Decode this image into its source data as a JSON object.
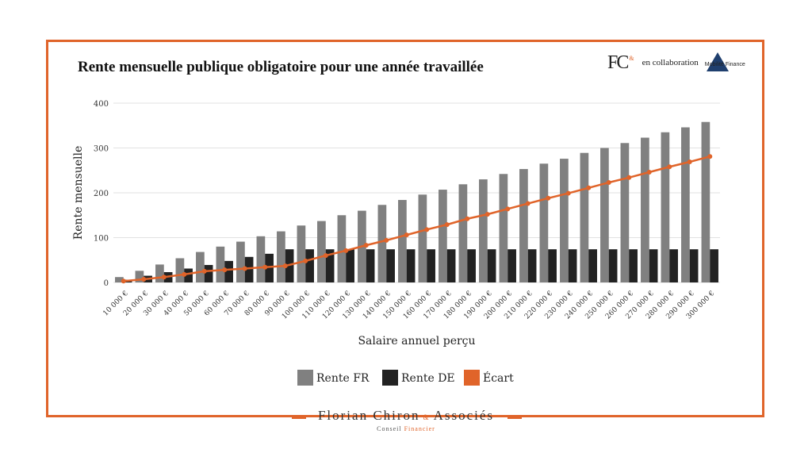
{
  "header": {
    "title": "Rente mensuelle publique obligatoire pour une année travaillée",
    "logo_fc": "FC",
    "logo_fc_amp": "&",
    "collab": "en collaboration",
    "partner": "Mobilité Finance"
  },
  "footer": {
    "name_1": "Florian Chiron",
    "amp": "&",
    "name_2": "Associés",
    "sub_1": "Conseil",
    "sub_2": "Financier"
  },
  "colors": {
    "frame": "#e0642a",
    "rente_fr": "#808080",
    "rente_de": "#222222",
    "ecart": "#e0642a"
  },
  "chart_data": {
    "type": "bar",
    "title": "Rente mensuelle publique obligatoire pour une année travaillée",
    "xlabel": "Salaire annuel perçu",
    "ylabel": "Rente mensuelle",
    "ylim": [
      0,
      400
    ],
    "yticks": [
      "0",
      "100",
      "200",
      "300",
      "400"
    ],
    "grid": true,
    "legend": "bottom",
    "categories": [
      "10 000 €",
      "20 000 €",
      "30 000 €",
      "40 000 €",
      "50 000 €",
      "60 000 €",
      "70 000 €",
      "80 000 €",
      "90 000 €",
      "100 000 €",
      "110 000 €",
      "120 000 €",
      "130 000 €",
      "140 000 €",
      "150 000 €",
      "160 000 €",
      "170 000 €",
      "180 000 €",
      "190 000 €",
      "200 000 €",
      "210 000 €",
      "220 000 €",
      "230 000 €",
      "240 000 €",
      "250 000 €",
      "260 000 €",
      "270 000 €",
      "280 000 €",
      "290 000 €",
      "300 000 €"
    ],
    "series": [
      {
        "name": "Rente FR",
        "type": "bar",
        "values": [
          12,
          26,
          40,
          54,
          68,
          80,
          91,
          103,
          114,
          127,
          137,
          150,
          160,
          173,
          184,
          196,
          207,
          219,
          230,
          242,
          253,
          265,
          276,
          289,
          300,
          311,
          323,
          335,
          346,
          358
        ]
      },
      {
        "name": "Rente DE",
        "type": "bar",
        "values": [
          6,
          15,
          23,
          31,
          39,
          48,
          57,
          64,
          74,
          74,
          74,
          74,
          74,
          74,
          74,
          74,
          74,
          74,
          74,
          74,
          74,
          74,
          74,
          74,
          74,
          74,
          74,
          74,
          74,
          74
        ]
      },
      {
        "name": "Écart",
        "type": "line",
        "values": [
          3,
          7,
          12,
          18,
          25,
          28,
          31,
          34,
          37,
          48,
          60,
          71,
          83,
          94,
          106,
          118,
          129,
          142,
          152,
          164,
          176,
          188,
          199,
          211,
          223,
          234,
          246,
          258,
          269,
          281
        ]
      }
    ]
  }
}
